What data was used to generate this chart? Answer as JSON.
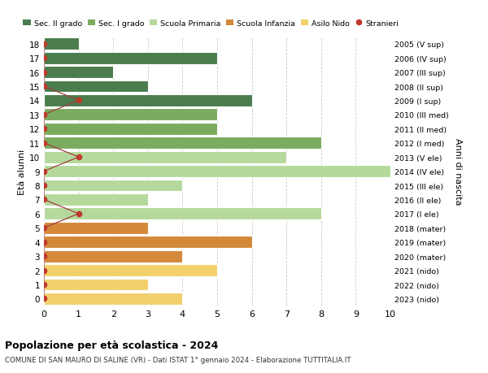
{
  "ages": [
    18,
    17,
    16,
    15,
    14,
    13,
    12,
    11,
    10,
    9,
    8,
    7,
    6,
    5,
    4,
    3,
    2,
    1,
    0
  ],
  "years": [
    "2005 (V sup)",
    "2006 (IV sup)",
    "2007 (III sup)",
    "2008 (II sup)",
    "2009 (I sup)",
    "2010 (III med)",
    "2011 (II med)",
    "2012 (I med)",
    "2013 (V ele)",
    "2014 (IV ele)",
    "2015 (III ele)",
    "2016 (II ele)",
    "2017 (I ele)",
    "2018 (mater)",
    "2019 (mater)",
    "2020 (mater)",
    "2021 (nido)",
    "2022 (nido)",
    "2023 (nido)"
  ],
  "bar_values": [
    1,
    5,
    2,
    3,
    6,
    5,
    5,
    8,
    7,
    10,
    4,
    3,
    8,
    3,
    6,
    4,
    5,
    3,
    4
  ],
  "bar_colors": [
    "#4a7c4e",
    "#4a7c4e",
    "#4a7c4e",
    "#4a7c4e",
    "#4a7c4e",
    "#7aab5e",
    "#7aab5e",
    "#7aab5e",
    "#b5d99c",
    "#b5d99c",
    "#b5d99c",
    "#b5d99c",
    "#b5d99c",
    "#d4883a",
    "#d4883a",
    "#d4883a",
    "#f2d06b",
    "#f2d06b",
    "#f2d06b"
  ],
  "stranieri_x": [
    0,
    0,
    0,
    0,
    1,
    0,
    0,
    0,
    1,
    0,
    0,
    0,
    1,
    0,
    0,
    0,
    0,
    0,
    0
  ],
  "legend_labels": [
    "Sec. II grado",
    "Sec. I grado",
    "Scuola Primaria",
    "Scuola Infanzia",
    "Asilo Nido",
    "Stranieri"
  ],
  "legend_colors": [
    "#4a7c4e",
    "#7aab5e",
    "#b5d99c",
    "#d4883a",
    "#f2d06b",
    "#c0392b"
  ],
  "ylabel": "Età alunni",
  "right_ylabel": "Anni di nascita",
  "title": "Popolazione per età scolastica - 2024",
  "subtitle": "COMUNE DI SAN MAURO DI SALINE (VR) - Dati ISTAT 1° gennaio 2024 - Elaborazione TUTTITALIA.IT",
  "xlim": [
    0,
    10
  ],
  "ylim": [
    -0.5,
    18.5
  ],
  "background_color": "#ffffff",
  "grid_color": "#cccccc",
  "stranieri_dot_color": "#c0392b",
  "stranieri_line_color": "#a04040"
}
